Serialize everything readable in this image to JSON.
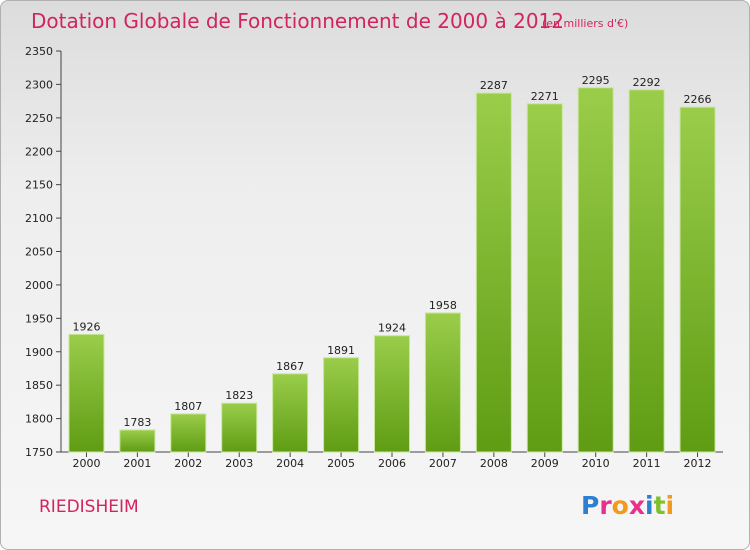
{
  "header": {
    "title": "Dotation Globale de Fonctionnement de 2000 à 2012",
    "subtitle": "(en milliers d'€)"
  },
  "footer": {
    "place": "RIEDISHEIM",
    "logo": {
      "text": "Proxiti",
      "letters": [
        {
          "char": "P",
          "color": "#2c7fd1"
        },
        {
          "char": "r",
          "color": "#e8308a"
        },
        {
          "char": "o",
          "color": "#f39a1e"
        },
        {
          "char": "x",
          "color": "#e8308a"
        },
        {
          "char": "i",
          "color": "#2c7fd1"
        },
        {
          "char": "t",
          "color": "#7fbf2a"
        },
        {
          "char": "i",
          "color": "#f39a1e"
        }
      ]
    }
  },
  "colors": {
    "title": "#d2245d",
    "bar_top": "#9acd4a",
    "bar_bottom": "#5f9c14"
  },
  "chart_data": {
    "type": "bar",
    "title": "Dotation Globale de Fonctionnement de 2000 à 2012",
    "subtitle": "(en milliers d'€)",
    "categories": [
      "2000",
      "2001",
      "2002",
      "2003",
      "2004",
      "2005",
      "2006",
      "2007",
      "2008",
      "2009",
      "2010",
      "2011",
      "2012"
    ],
    "values": [
      1926,
      1783,
      1807,
      1823,
      1867,
      1891,
      1924,
      1958,
      2287,
      2271,
      2295,
      2292,
      2266
    ],
    "ylim": [
      1750,
      2350
    ],
    "yticks": [
      1750,
      1800,
      1850,
      1900,
      1950,
      2000,
      2050,
      2100,
      2150,
      2200,
      2250,
      2300,
      2350
    ],
    "xlabel": "",
    "ylabel": "",
    "grid": false,
    "data_labels": true
  }
}
